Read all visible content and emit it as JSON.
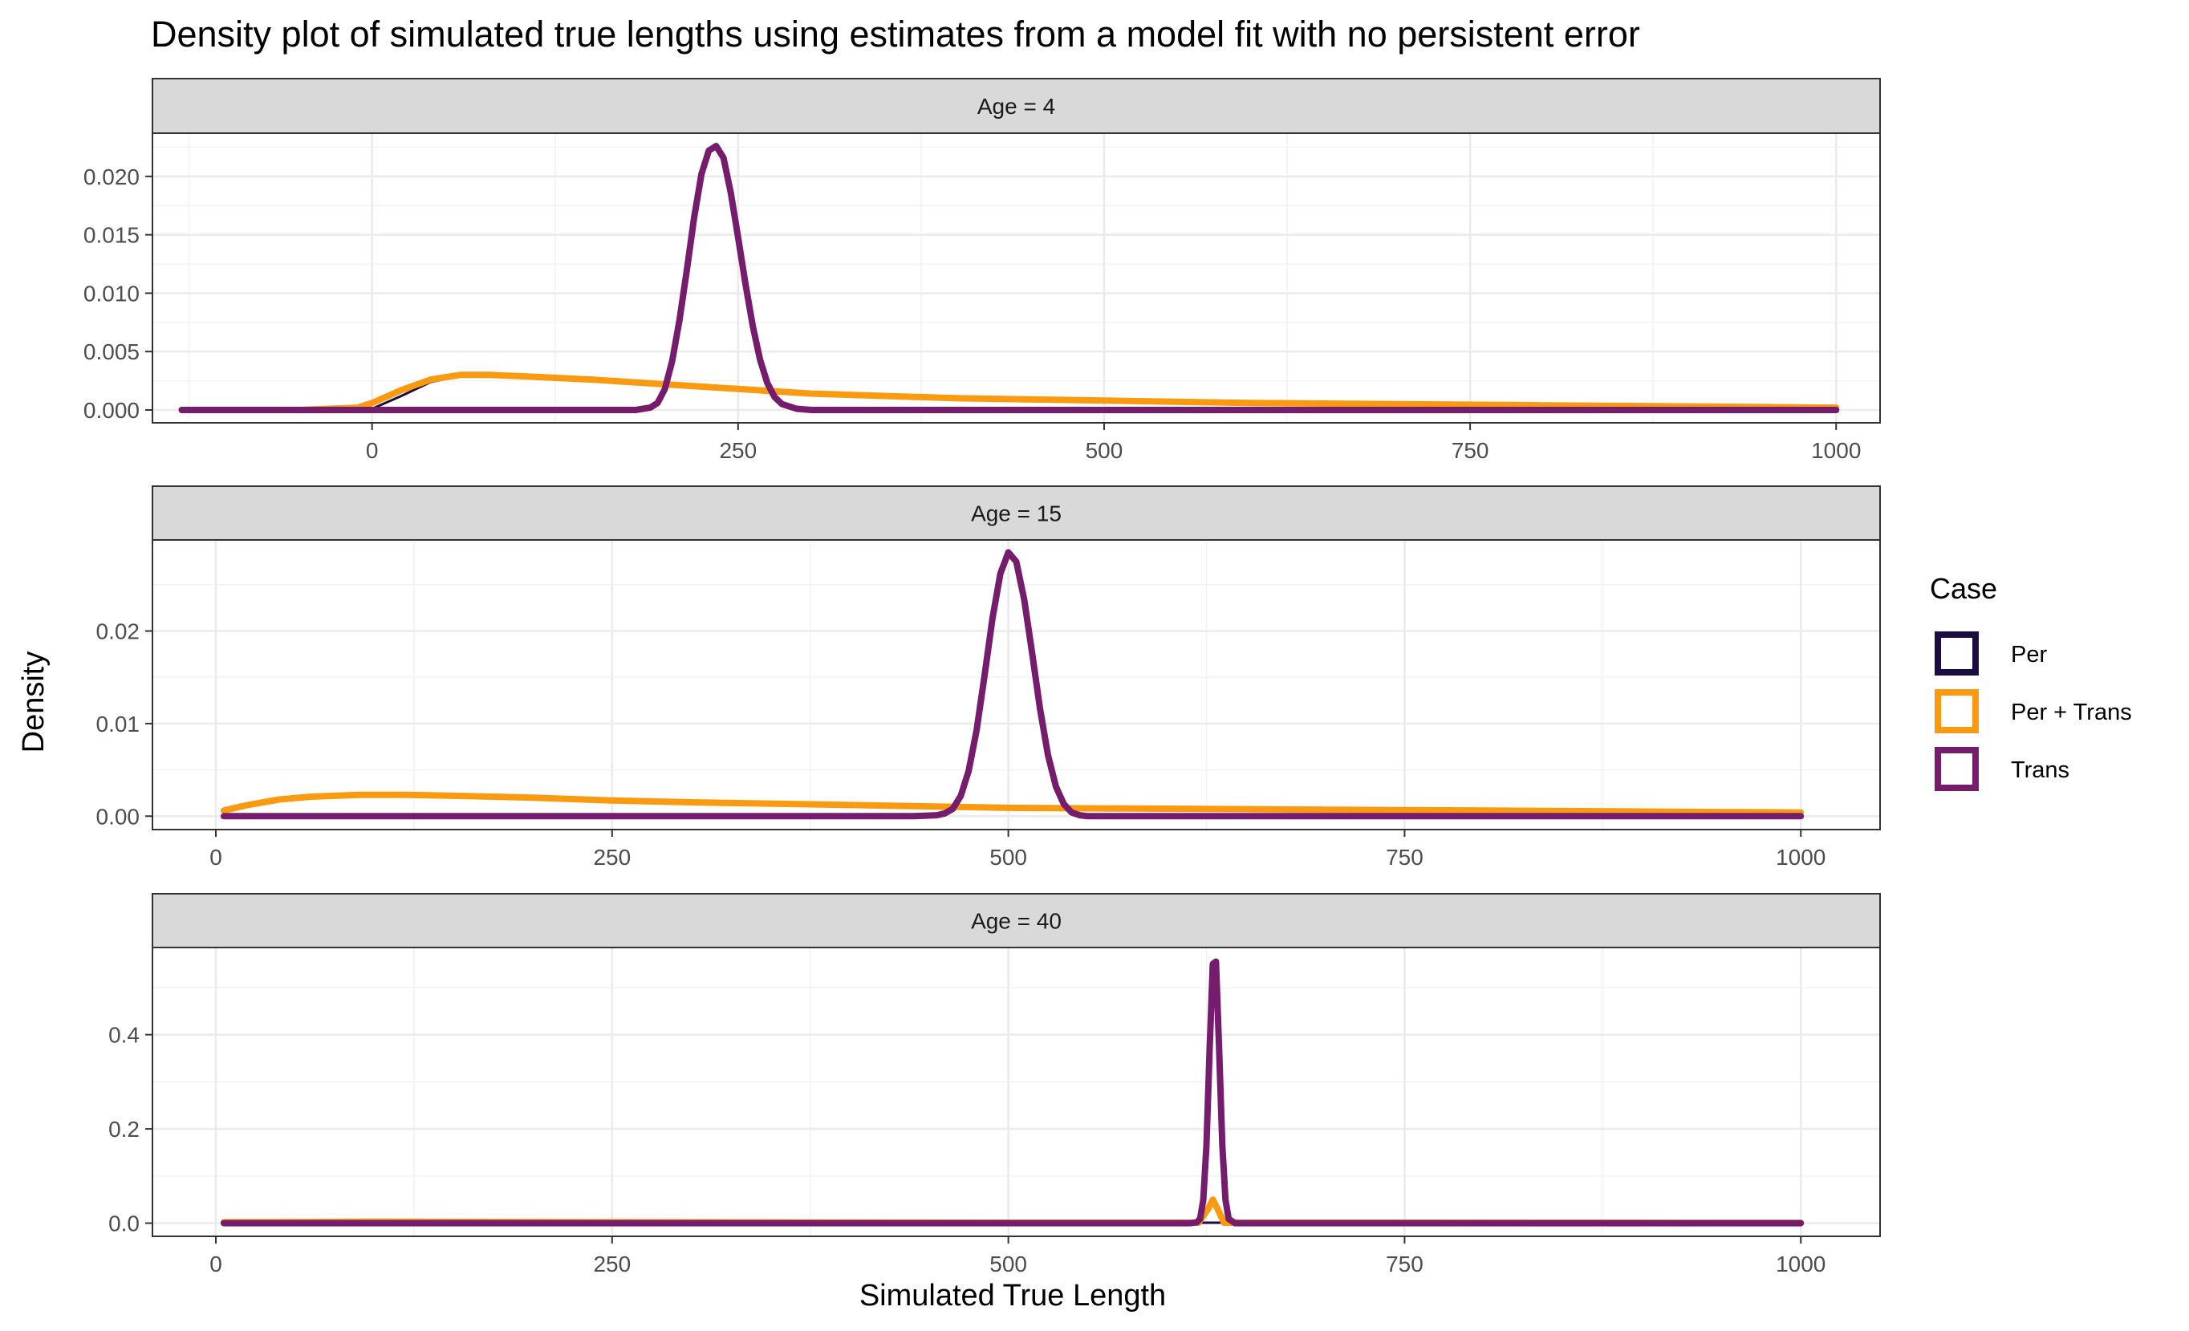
{
  "chart_data": {
    "type": "line",
    "title": "Density plot of simulated true lengths using estimates from a model fit with no persistent error",
    "xlabel": "Simulated True Length",
    "ylabel": "Density",
    "legend": {
      "title": "Case",
      "placement": "right",
      "entries": [
        {
          "label": "Per",
          "color": "#1b0c41"
        },
        {
          "label": "Per + Trans",
          "color": "#f99a11"
        },
        {
          "label": "Trans",
          "color": "#761c6c"
        }
      ]
    },
    "grid": true,
    "panels": [
      {
        "strip": "Age = 4",
        "xlim": [
          -150,
          1030
        ],
        "ylim": [
          -0.0011,
          0.0237
        ],
        "xticks": [
          0,
          250,
          500,
          750,
          1000
        ],
        "xtick_labels": [
          "0",
          "250",
          "500",
          "750",
          "1000"
        ],
        "yticks": [
          0,
          0.005,
          0.01,
          0.015,
          0.02
        ],
        "ytick_labels": [
          "0.000",
          "0.005",
          "0.010",
          "0.015",
          "0.020"
        ],
        "series": [
          {
            "name": "Per",
            "x": [
              -130,
              -50,
              0,
              20,
              40,
              60,
              80,
              100,
              150,
              200,
              250,
              300,
              400,
              500,
              600,
              700,
              800,
              900,
              1000
            ],
            "y": [
              0,
              0,
              0.0001,
              0.0012,
              0.0024,
              0.0029,
              0.003,
              0.0029,
              0.0026,
              0.0022,
              0.0017,
              0.0014,
              0.001,
              0.0008,
              0.0006,
              0.0005,
              0.0004,
              0.0003,
              0.0002
            ]
          },
          {
            "name": "Per + Trans",
            "x": [
              -130,
              -50,
              -10,
              0,
              20,
              40,
              60,
              80,
              100,
              150,
              200,
              250,
              300,
              400,
              500,
              600,
              700,
              800,
              900,
              1000
            ],
            "y": [
              0,
              0,
              0.0002,
              0.0006,
              0.0017,
              0.0026,
              0.003,
              0.003,
              0.0029,
              0.0026,
              0.0022,
              0.0018,
              0.0014,
              0.001,
              0.0008,
              0.0006,
              0.0005,
              0.0004,
              0.0003,
              0.0002
            ]
          },
          {
            "name": "Trans",
            "x": [
              -130,
              150,
              180,
              190,
              195,
              200,
              205,
              210,
              215,
              220,
              225,
              230,
              235,
              240,
              245,
              250,
              255,
              260,
              265,
              270,
              275,
              280,
              290,
              300,
              320,
              1000
            ],
            "y": [
              0,
              0,
              0,
              0.0002,
              0.0006,
              0.0018,
              0.0042,
              0.0077,
              0.012,
              0.0165,
              0.0202,
              0.0222,
              0.0226,
              0.0216,
              0.0186,
              0.0148,
              0.0108,
              0.0072,
              0.0043,
              0.0023,
              0.0011,
              0.0005,
              0.0001,
              0,
              0,
              0
            ]
          }
        ]
      },
      {
        "strip": "Age = 15",
        "xlim": [
          -40,
          1050
        ],
        "ylim": [
          -0.00145,
          0.02984
        ],
        "xticks": [
          0,
          250,
          500,
          750,
          1000
        ],
        "xtick_labels": [
          "0",
          "250",
          "500",
          "750",
          "1000"
        ],
        "yticks": [
          0,
          0.01,
          0.02
        ],
        "ytick_labels": [
          "0.00",
          "0.01",
          "0.02"
        ],
        "series": [
          {
            "name": "Per",
            "x": [
              5,
              20,
              40,
              60,
              90,
              120,
              150,
              200,
              250,
              300,
              400,
              500,
              600,
              700,
              800,
              900,
              1000
            ],
            "y": [
              0.0006,
              0.0012,
              0.0018,
              0.0021,
              0.0023,
              0.0023,
              0.0022,
              0.002,
              0.0017,
              0.0015,
              0.0012,
              0.0009,
              0.0008,
              0.0007,
              0.0006,
              0.0005,
              0.0004
            ]
          },
          {
            "name": "Per + Trans",
            "x": [
              5,
              20,
              40,
              60,
              90,
              120,
              150,
              200,
              250,
              300,
              400,
              500,
              600,
              700,
              800,
              900,
              1000
            ],
            "y": [
              0.0006,
              0.0012,
              0.0018,
              0.0021,
              0.0023,
              0.0023,
              0.0022,
              0.002,
              0.0017,
              0.0015,
              0.0012,
              0.0009,
              0.0008,
              0.0007,
              0.0006,
              0.0005,
              0.0004
            ]
          },
          {
            "name": "Trans",
            "x": [
              5,
              440,
              455,
              460,
              465,
              470,
              475,
              480,
              485,
              490,
              495,
              500,
              505,
              510,
              515,
              520,
              525,
              530,
              535,
              540,
              545,
              550,
              560,
              1000
            ],
            "y": [
              0,
              0,
              0.0001,
              0.0003,
              0.0008,
              0.0022,
              0.0049,
              0.0093,
              0.0152,
              0.0214,
              0.0262,
              0.0285,
              0.0275,
              0.0234,
              0.0176,
              0.0116,
              0.0066,
              0.0032,
              0.0013,
              0.0004,
              0.0001,
              0,
              0,
              0
            ]
          }
        ]
      },
      {
        "strip": "Age = 40",
        "xlim": [
          -40,
          1050
        ],
        "ylim": [
          -0.028,
          0.585
        ],
        "xticks": [
          0,
          250,
          500,
          750,
          1000
        ],
        "xtick_labels": [
          "0",
          "250",
          "500",
          "750",
          "1000"
        ],
        "yticks": [
          0,
          0.2,
          0.4
        ],
        "ytick_labels": [
          "0.0",
          "0.2",
          "0.4"
        ],
        "series": [
          {
            "name": "Per",
            "x": [
              5,
              100,
              250,
              500,
              750,
              1000
            ],
            "y": [
              0.002,
              0.003,
              0.002,
              0.001,
              0.001,
              0.0005
            ]
          },
          {
            "name": "Per + Trans",
            "x": [
              5,
              100,
              250,
              500,
              620,
              626,
              629,
              632,
              636,
              650,
              750,
              1000
            ],
            "y": [
              0.002,
              0.003,
              0.002,
              0.001,
              0.001,
              0.03,
              0.05,
              0.03,
              0.001,
              0.001,
              0.001,
              0.0005
            ]
          },
          {
            "name": "Trans",
            "x": [
              5,
              615,
              619,
              621,
              623,
              625,
              627,
              629,
              631,
              633,
              635,
              637,
              639,
              643,
              1000
            ],
            "y": [
              0,
              0,
              0.002,
              0.009,
              0.05,
              0.165,
              0.37,
              0.55,
              0.555,
              0.37,
              0.165,
              0.05,
              0.009,
              0,
              0
            ]
          }
        ]
      }
    ]
  }
}
